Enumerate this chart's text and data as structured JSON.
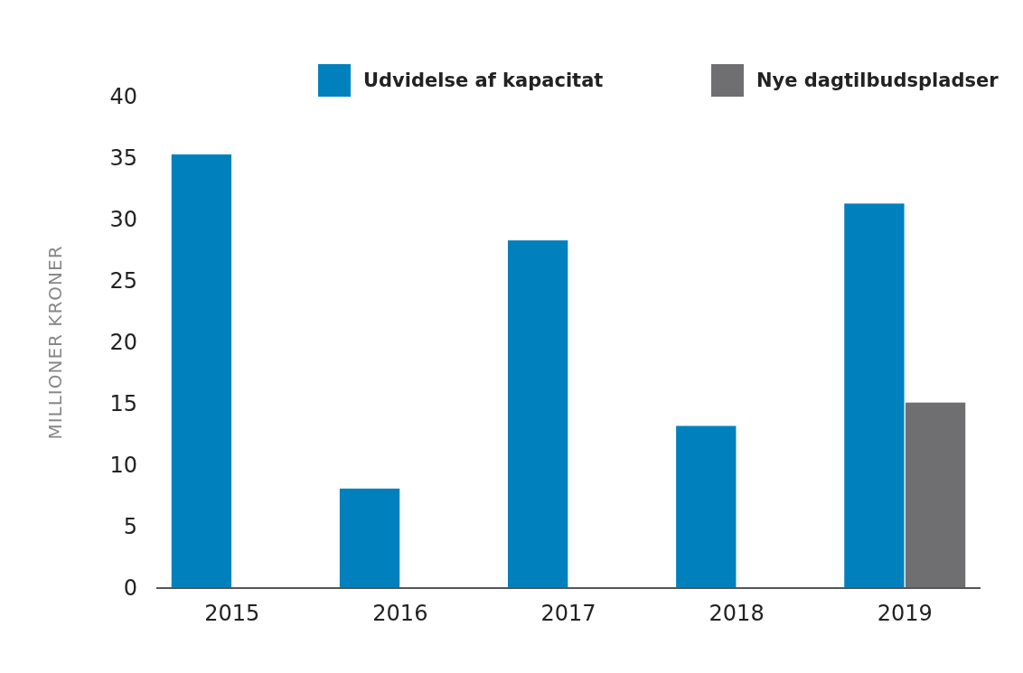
{
  "chart_data": {
    "type": "bar",
    "ylabel": "MILLIONER KRONER",
    "categories": [
      "2015",
      "2016",
      "2017",
      "2018",
      "2019"
    ],
    "series": [
      {
        "name": "Udvidelse af kapacitat",
        "color": "#0081bd",
        "values": [
          35.3,
          8.1,
          28.3,
          13.2,
          31.3
        ]
      },
      {
        "name": "Nye dagtilbudspladser",
        "color": "#6f6f71",
        "values": [
          null,
          null,
          null,
          null,
          15.1
        ]
      }
    ],
    "ylim": [
      0,
      40
    ],
    "yticks": [
      0,
      5,
      10,
      15,
      20,
      25,
      30,
      35,
      40
    ],
    "grid": false,
    "legend": "top right"
  }
}
